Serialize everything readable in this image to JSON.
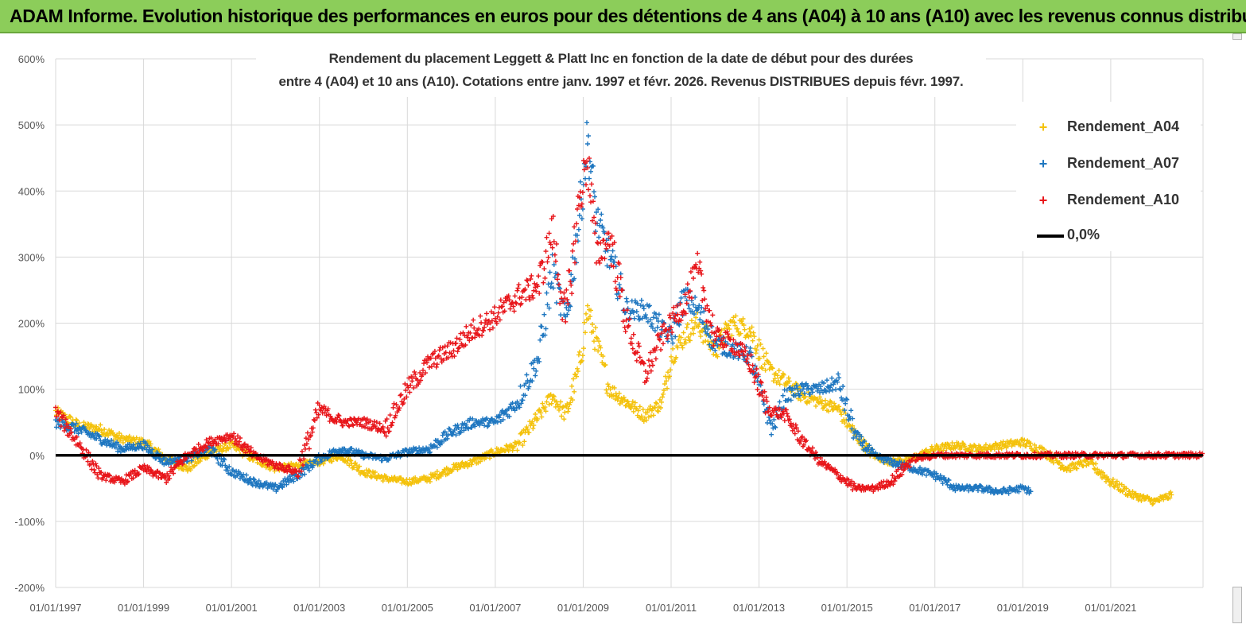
{
  "banner": {
    "title": "ADAM Informe. Evolution historique des performances en euros pour des détentions de 4 ans (A04) à 10 ans (A10) avec les revenus connus distribués"
  },
  "colors": {
    "banner_bg": "#8ccd5a",
    "A04": "#f4c20d",
    "A07": "#1f77c0",
    "A10": "#e8161b",
    "zero_line": "#000000",
    "grid": "#d9d9d9"
  },
  "chart_data": {
    "type": "scatter",
    "title_line1": "Rendement du placement Leggett & Platt Inc en fonction de la date de début pour des durées",
    "title_line2": "entre 4 (A04) et 10 ans (A10). Cotations entre janv. 1997 et févr. 2026. Revenus DISTRIBUES depuis févr. 1997.",
    "xlabel": "",
    "ylabel": "",
    "x_ticks": [
      "01/01/1997",
      "01/01/1999",
      "01/01/2001",
      "01/01/2003",
      "01/01/2005",
      "01/01/2007",
      "01/01/2009",
      "01/01/2011",
      "01/01/2013",
      "01/01/2015",
      "01/01/2017",
      "01/01/2019",
      "01/01/2021"
    ],
    "x_range": [
      1997.0,
      2023.1
    ],
    "y_ticks": [
      "-200%",
      "-100%",
      "0%",
      "100%",
      "200%",
      "300%",
      "400%",
      "500%",
      "600%"
    ],
    "ylim": [
      -200,
      600
    ],
    "grid": true,
    "legend_position": "top-right",
    "legend": [
      {
        "name": "Rendement_A04",
        "color": "#f4c20d",
        "marker": "+"
      },
      {
        "name": "Rendement_A07",
        "color": "#1f77c0",
        "marker": "+"
      },
      {
        "name": "Rendement_A10",
        "color": "#e8161b",
        "marker": "+"
      },
      {
        "name": "0,0%",
        "color": "#000000",
        "marker": "line"
      }
    ],
    "series": [
      {
        "name": "Rendement_A04",
        "color": "#f4c20d",
        "x": [
          1997.0,
          1997.5,
          1998.0,
          1998.5,
          1999.0,
          1999.5,
          2000.0,
          2000.5,
          2001.0,
          2001.5,
          2002.0,
          2002.5,
          2003.0,
          2003.5,
          2004.0,
          2004.5,
          2005.0,
          2005.5,
          2006.0,
          2006.5,
          2007.0,
          2007.5,
          2008.0,
          2008.3,
          2008.6,
          2008.9,
          2009.1,
          2009.3,
          2009.6,
          2010.0,
          2010.4,
          2010.8,
          2011.0,
          2011.3,
          2011.6,
          2012.0,
          2012.4,
          2012.8,
          2013.2,
          2013.6,
          2014.0,
          2014.4,
          2014.8,
          2015.2,
          2015.6,
          2016.0,
          2016.5,
          2017.0,
          2017.5,
          2018.0,
          2018.5,
          2019.0,
          2019.5,
          2020.0,
          2020.5,
          2021.0,
          2021.5,
          2022.0,
          2022.4
        ],
        "y": [
          65,
          45,
          40,
          25,
          20,
          -5,
          -20,
          5,
          15,
          -5,
          -20,
          -15,
          -10,
          0,
          -25,
          -35,
          -40,
          -35,
          -20,
          -10,
          5,
          15,
          60,
          90,
          60,
          130,
          220,
          170,
          100,
          80,
          60,
          80,
          150,
          180,
          200,
          160,
          200,
          190,
          130,
          110,
          90,
          80,
          70,
          30,
          0,
          -10,
          -5,
          10,
          15,
          10,
          15,
          20,
          5,
          -20,
          -10,
          -40,
          -60,
          -70,
          -60
        ]
      },
      {
        "name": "Rendement_A07",
        "color": "#1f77c0",
        "x": [
          1997.0,
          1997.5,
          1998.0,
          1998.5,
          1999.0,
          1999.5,
          2000.0,
          2000.5,
          2001.0,
          2001.5,
          2002.0,
          2002.5,
          2003.0,
          2003.5,
          2004.0,
          2004.5,
          2005.0,
          2005.5,
          2006.0,
          2006.5,
          2007.0,
          2007.5,
          2008.0,
          2008.3,
          2008.6,
          2008.9,
          2009.1,
          2009.3,
          2009.6,
          2010.0,
          2010.4,
          2010.8,
          2011.0,
          2011.3,
          2011.6,
          2012.0,
          2012.4,
          2012.8,
          2013.0,
          2013.3,
          2013.6,
          2014.0,
          2014.4,
          2014.8,
          2015.2,
          2015.6,
          2016.0,
          2016.5,
          2017.0,
          2017.5,
          2018.0,
          2018.5,
          2019.0,
          2019.2
        ],
        "y": [
          50,
          40,
          25,
          10,
          15,
          -10,
          -5,
          10,
          -25,
          -40,
          -50,
          -30,
          -5,
          10,
          0,
          -5,
          5,
          10,
          35,
          50,
          50,
          80,
          150,
          280,
          200,
          350,
          480,
          360,
          300,
          220,
          220,
          190,
          180,
          240,
          220,
          170,
          160,
          150,
          100,
          40,
          90,
          100,
          100,
          110,
          30,
          0,
          -10,
          -20,
          -30,
          -50,
          -50,
          -55,
          -50,
          -55
        ]
      },
      {
        "name": "Rendement_A10",
        "color": "#e8161b",
        "x": [
          1997.0,
          1997.5,
          1998.0,
          1998.5,
          1999.0,
          1999.5,
          2000.0,
          2000.5,
          2001.0,
          2001.5,
          2002.0,
          2002.5,
          2003.0,
          2003.5,
          2004.0,
          2004.5,
          2005.0,
          2005.5,
          2006.0,
          2006.5,
          2007.0,
          2007.5,
          2008.0,
          2008.3,
          2008.6,
          2008.9,
          2009.1,
          2009.3,
          2009.6,
          2010.0,
          2010.4,
          2010.8,
          2011.0,
          2011.3,
          2011.6,
          2012.0,
          2012.4,
          2012.8,
          2013.2,
          2013.6,
          2014.0,
          2014.4,
          2014.8,
          2015.2,
          2015.6,
          2016.0,
          2016.5,
          2017.0,
          2018.0,
          2019.0,
          2020.0,
          2021.0,
          2022.0,
          2023.1
        ],
        "y": [
          65,
          20,
          -30,
          -40,
          -20,
          -35,
          0,
          20,
          30,
          0,
          -15,
          -25,
          70,
          50,
          50,
          40,
          100,
          140,
          160,
          190,
          210,
          240,
          260,
          340,
          200,
          380,
          450,
          300,
          330,
          200,
          120,
          180,
          200,
          230,
          280,
          180,
          170,
          140,
          70,
          60,
          20,
          -10,
          -30,
          -50,
          -50,
          -40,
          -5,
          0,
          0,
          0,
          0,
          0,
          0,
          0
        ]
      },
      {
        "name": "0,0%",
        "color": "#000000",
        "x": [
          1997.0,
          2023.1
        ],
        "y": [
          0,
          0
        ]
      }
    ]
  }
}
